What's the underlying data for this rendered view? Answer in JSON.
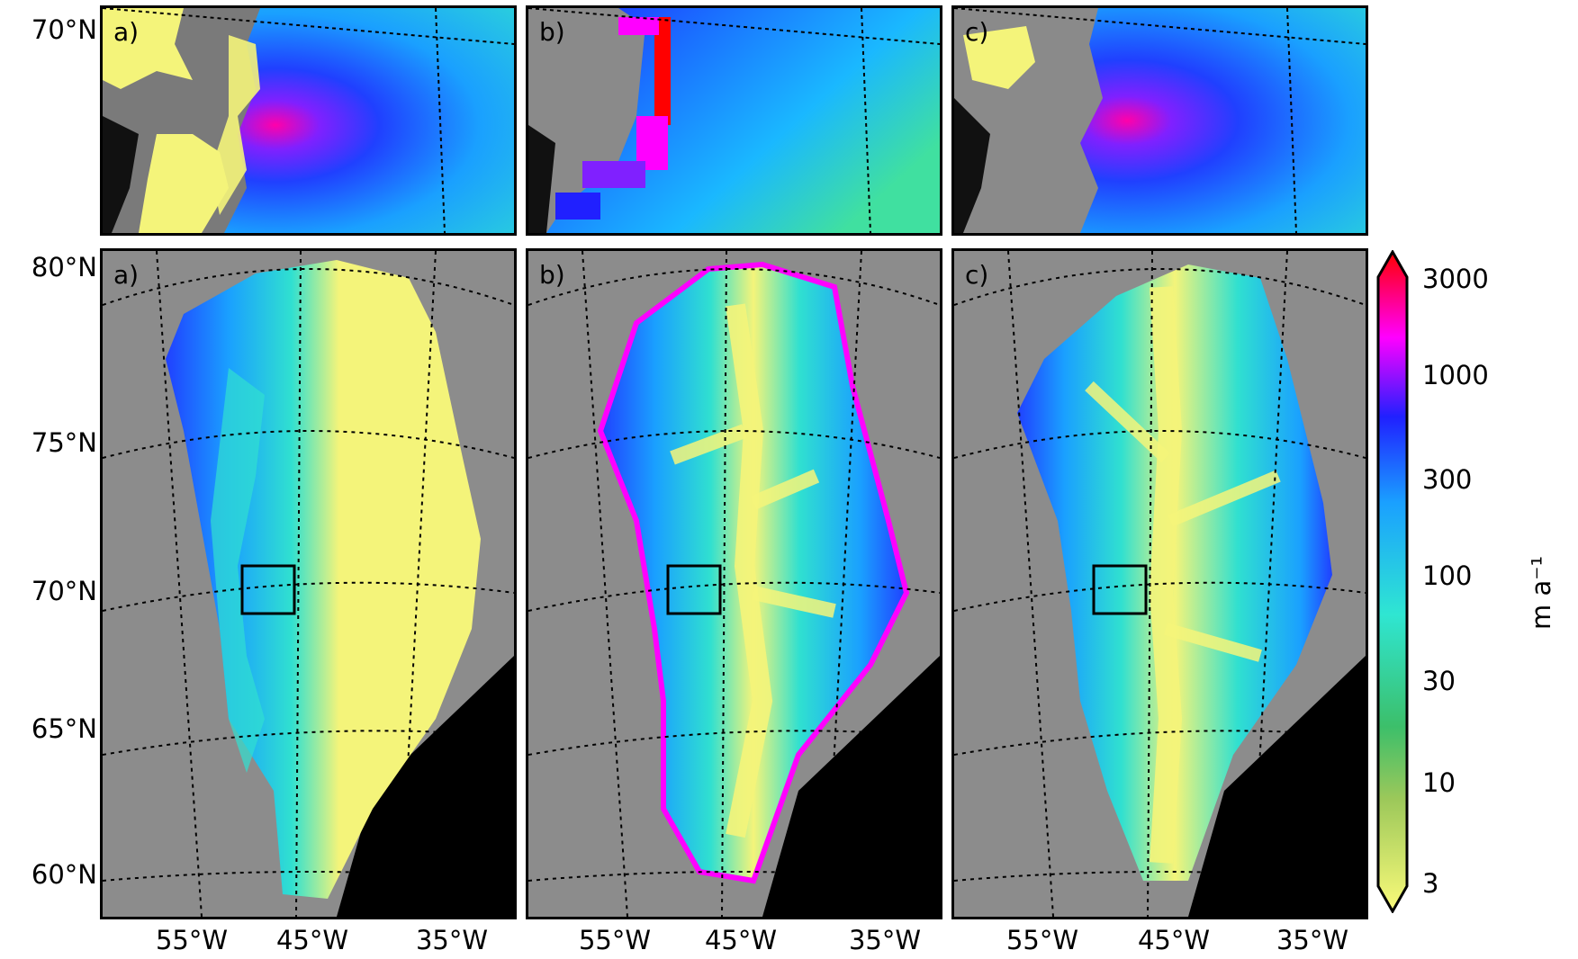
{
  "panels": {
    "a_label": "a)",
    "b_label": "b)",
    "c_label": "c)"
  },
  "inset_latitude_label": "70°N",
  "latitude_labels": [
    "80°N",
    "75°N",
    "70°N",
    "65°N",
    "60°N"
  ],
  "longitude_labels": [
    "55°W",
    "45°W",
    "35°W"
  ],
  "colorbar": {
    "ticks": [
      "3000",
      "1000",
      "300",
      "100",
      "30",
      "10",
      "3"
    ],
    "unit": "m a⁻¹",
    "colors": [
      "#fbfb7a",
      "#6fa84a",
      "#2fe6d2",
      "#1aa0ff",
      "#2020ff",
      "#ff00ff",
      "#ff0000"
    ]
  }
}
